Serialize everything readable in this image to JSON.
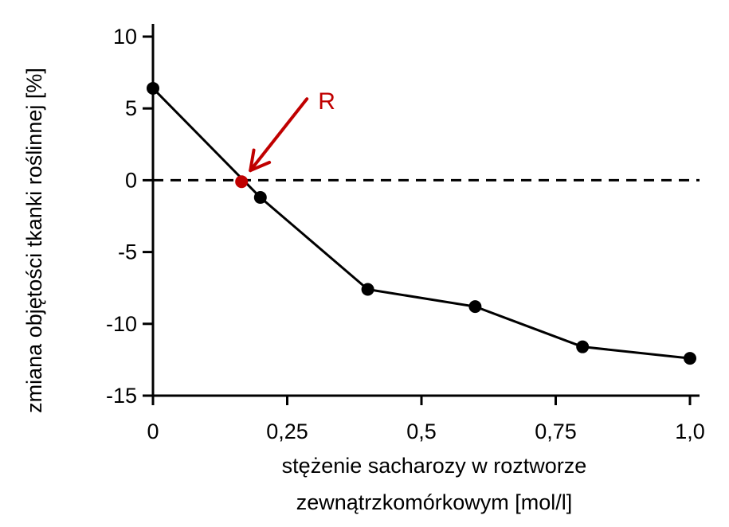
{
  "colors": {
    "axis": "#000000",
    "series": "#000000",
    "highlight": "#c00000"
  },
  "chart_data": {
    "type": "line",
    "title": "",
    "xlabel_lines": [
      "stężenie sacharozy w roztworze",
      "zewnątrzkomórkowym [mol/l]"
    ],
    "ylabel": "zmiana objętości tkanki roślinnej [%]",
    "xlim": [
      0,
      1.0
    ],
    "ylim": [
      -15,
      10
    ],
    "xticks": [
      {
        "value": 0,
        "label": "0"
      },
      {
        "value": 0.25,
        "label": "0,25"
      },
      {
        "value": 0.5,
        "label": "0,5"
      },
      {
        "value": 0.75,
        "label": "0,75"
      },
      {
        "value": 1.0,
        "label": "1,0"
      }
    ],
    "yticks": [
      {
        "value": 10,
        "label": "10"
      },
      {
        "value": 5,
        "label": "5"
      },
      {
        "value": 0,
        "label": "0"
      },
      {
        "value": -5,
        "label": "-5"
      },
      {
        "value": -10,
        "label": "-10"
      },
      {
        "value": -15,
        "label": "-15"
      }
    ],
    "series": [
      {
        "x": [
          0,
          0.2,
          0.4,
          0.6,
          0.8,
          1.0
        ],
        "y": [
          6.4,
          -1.2,
          -7.6,
          -8.8,
          -11.6,
          -12.4
        ]
      }
    ],
    "reference_line": {
      "y": 0,
      "style": "dashed"
    },
    "annotation": {
      "label": "R",
      "x": 0.165,
      "y": -0.1,
      "color": "#c00000"
    },
    "grid": false
  }
}
